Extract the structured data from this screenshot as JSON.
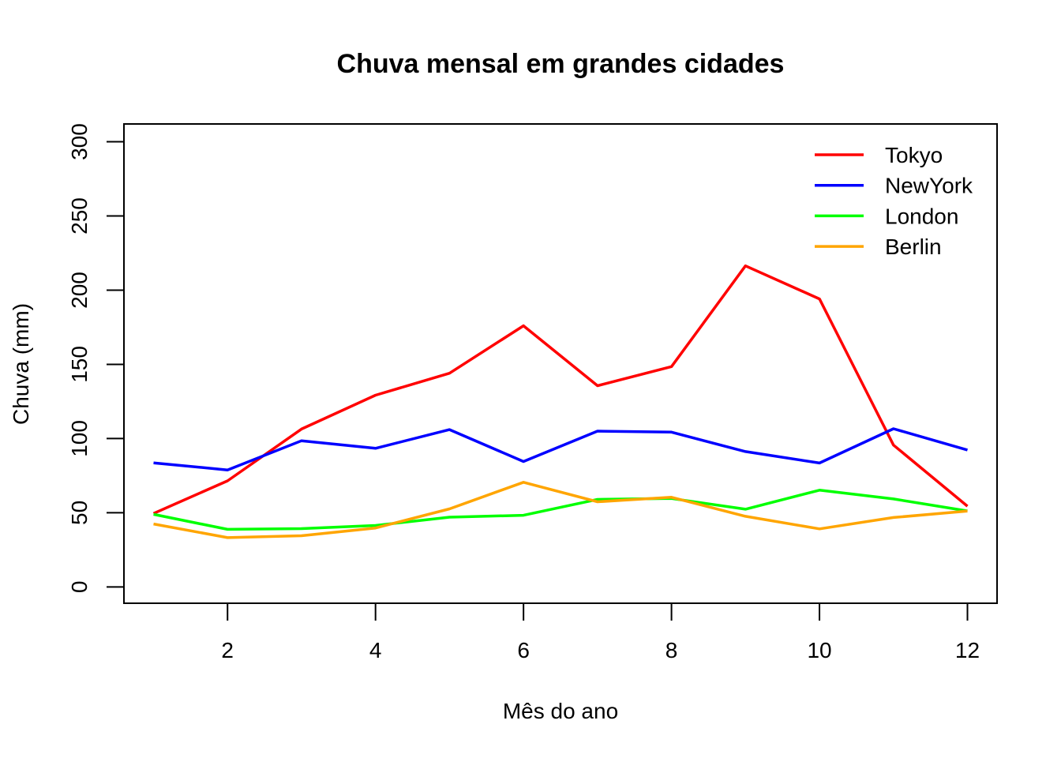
{
  "chart_data": {
    "type": "line",
    "title": "Chuva mensal em grandes cidades",
    "xlabel": "Mês do ano",
    "ylabel": "Chuva (mm)",
    "xlim": [
      0.6,
      12.4
    ],
    "ylim": [
      -11,
      312
    ],
    "x_ticks": [
      2,
      4,
      6,
      8,
      10,
      12
    ],
    "y_ticks": [
      0,
      50,
      100,
      150,
      200,
      250,
      300
    ],
    "x": [
      1,
      2,
      3,
      4,
      5,
      6,
      7,
      8,
      9,
      10,
      11,
      12
    ],
    "grid": false,
    "legend_position": "top-right",
    "series": [
      {
        "name": "Tokyo",
        "color": "#ff0000",
        "values": [
          49.5,
          71.5,
          106.4,
          129.2,
          144.0,
          176.0,
          135.6,
          148.5,
          216.4,
          194.1,
          95.6,
          54.4
        ]
      },
      {
        "name": "NewYork",
        "color": "#0000ff",
        "values": [
          83.6,
          78.8,
          98.5,
          93.4,
          106.0,
          84.5,
          105.0,
          104.3,
          91.2,
          83.5,
          106.6,
          92.3
        ]
      },
      {
        "name": "London",
        "color": "#00ff00",
        "values": [
          48.9,
          38.8,
          39.3,
          41.4,
          47.0,
          48.3,
          59.0,
          59.6,
          52.4,
          65.2,
          59.3,
          51.2
        ]
      },
      {
        "name": "Berlin",
        "color": "#ffa500",
        "values": [
          42.4,
          33.2,
          34.5,
          39.7,
          52.6,
          70.5,
          57.4,
          60.4,
          47.6,
          39.1,
          46.8,
          51.1
        ]
      }
    ]
  }
}
